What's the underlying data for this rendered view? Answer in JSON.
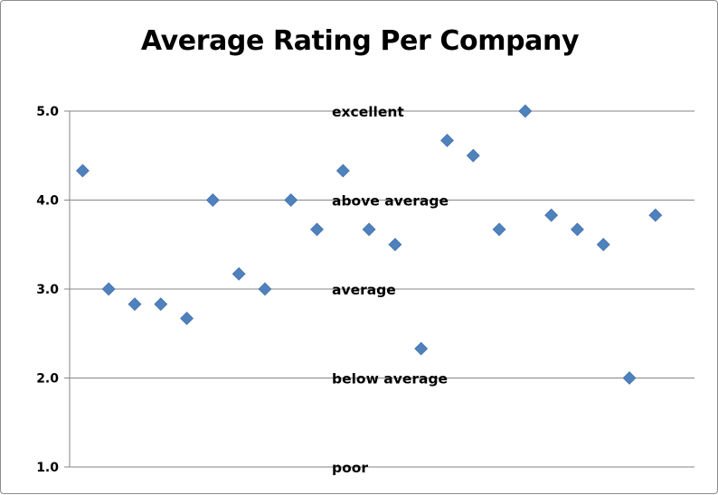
{
  "chart_data": {
    "type": "scatter",
    "title": "Average Rating Per Company",
    "xlabel": "",
    "ylabel": "",
    "xlim": [
      0.5,
      24.5
    ],
    "ylim": [
      1.0,
      5.0
    ],
    "y_ticks": [
      "1.0",
      "2.0",
      "3.0",
      "4.0",
      "5.0"
    ],
    "grid": true,
    "legend": "none",
    "marker": "diamond",
    "marker_color": "#4f81bd",
    "annotations": [
      {
        "label": "excellent",
        "y": 5.0
      },
      {
        "label": "above average",
        "y": 4.0
      },
      {
        "label": "average",
        "y": 3.0
      },
      {
        "label": "below average",
        "y": 2.0
      },
      {
        "label": "poor",
        "y": 1.0
      }
    ],
    "series": [
      {
        "x": [
          1,
          2,
          3,
          4,
          5,
          6,
          7,
          8,
          9,
          10,
          11,
          12,
          13,
          14,
          15,
          16,
          17,
          18,
          19,
          20,
          21,
          22,
          23,
          24
        ],
        "values": [
          4.33,
          3.0,
          2.83,
          2.83,
          2.67,
          4.0,
          3.17,
          3.0,
          4.0,
          3.67,
          4.33,
          3.67,
          3.5,
          2.33,
          4.67,
          4.5,
          3.67,
          5.0,
          3.83,
          3.67,
          3.5,
          2.0,
          3.83,
          null
        ]
      }
    ]
  }
}
